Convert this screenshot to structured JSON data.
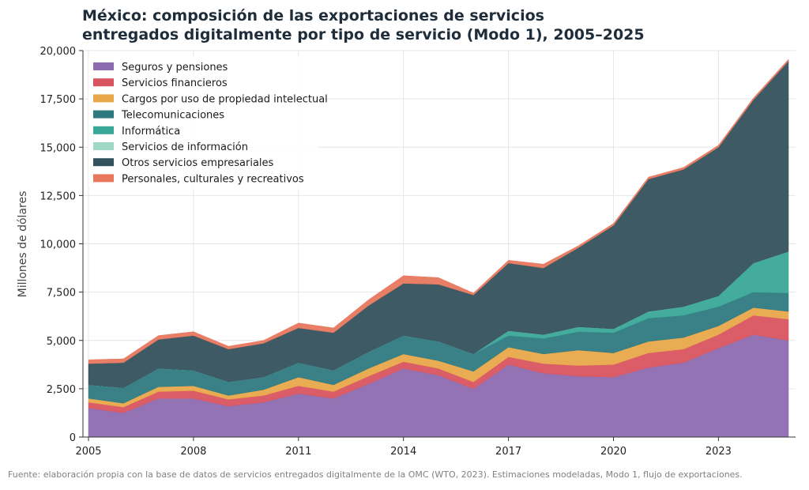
{
  "title_lines": [
    "México: composición de las exportaciones de servicios",
    "entregados digitalmente por tipo de servicio (Modo 1), 2005–2025"
  ],
  "footnote": "Fuente: elaboración propia con la base de datos de servicios entregados digitalmente de la OMC (WTO, 2023). Estimaciones modeladas, Modo 1, flujo de exportaciones.",
  "chart_data": {
    "type": "area",
    "stacked": true,
    "title": "México: composición de las exportaciones de servicios entregados digitalmente por tipo de servicio (Modo 1), 2005–2025",
    "xlabel": "",
    "ylabel": "Millones de dólares",
    "xlim": [
      2005,
      2025
    ],
    "ylim": [
      0,
      20000
    ],
    "x_ticks": [
      2005,
      2008,
      2011,
      2014,
      2017,
      2020,
      2023
    ],
    "y_ticks": [
      0,
      2500,
      5000,
      7500,
      10000,
      12500,
      15000,
      17500,
      20000
    ],
    "y_tick_labels": [
      "0",
      "2,500",
      "5,000",
      "7,500",
      "10,000",
      "12,500",
      "15,000",
      "17,500",
      "20,000"
    ],
    "grid": true,
    "legend_position": "top-left",
    "x": [
      2005,
      2006,
      2007,
      2008,
      2009,
      2010,
      2011,
      2012,
      2013,
      2014,
      2015,
      2016,
      2017,
      2018,
      2019,
      2020,
      2021,
      2022,
      2023,
      2024,
      2025
    ],
    "series": [
      {
        "name": "Seguros y pensiones",
        "color": "#8e6bb0",
        "values": [
          1500,
          1250,
          2000,
          2000,
          1600,
          1800,
          2250,
          2000,
          2750,
          3550,
          3200,
          2500,
          3750,
          3300,
          3150,
          3100,
          3600,
          3850,
          4600,
          5300,
          5000
        ]
      },
      {
        "name": "Servicios financieros",
        "color": "#d9545f",
        "values": [
          300,
          300,
          350,
          400,
          350,
          350,
          400,
          350,
          400,
          350,
          350,
          350,
          400,
          500,
          550,
          650,
          750,
          700,
          700,
          1000,
          1100
        ]
      },
      {
        "name": "Cargos por uso de propiedad intelectual",
        "color": "#e8a84a",
        "values": [
          200,
          200,
          250,
          250,
          200,
          300,
          450,
          350,
          400,
          400,
          400,
          550,
          500,
          500,
          800,
          600,
          600,
          600,
          450,
          400,
          400
        ]
      },
      {
        "name": "Telecomunicaciones",
        "color": "#2e7a80",
        "values": [
          700,
          800,
          950,
          800,
          700,
          650,
          750,
          750,
          850,
          950,
          1000,
          900,
          600,
          800,
          950,
          1050,
          1200,
          1150,
          1000,
          800,
          950
        ]
      },
      {
        "name": "Informática",
        "color": "#3aa898",
        "values": [
          0,
          0,
          0,
          0,
          0,
          0,
          0,
          0,
          0,
          0,
          0,
          0,
          250,
          200,
          250,
          200,
          350,
          450,
          550,
          1500,
          2150
        ]
      },
      {
        "name": "Servicios de información",
        "color": "#9fd8c4",
        "values": [
          0,
          0,
          0,
          0,
          0,
          0,
          0,
          0,
          0,
          0,
          0,
          0,
          0,
          0,
          0,
          0,
          0,
          0,
          0,
          0,
          0
        ]
      },
      {
        "name": "Otros servicios empresariales",
        "color": "#34525d",
        "values": [
          1100,
          1300,
          1500,
          1800,
          1700,
          1750,
          1800,
          1950,
          2400,
          2700,
          2950,
          3050,
          3500,
          3450,
          4100,
          5350,
          6850,
          7100,
          7700,
          8450,
          9850
        ]
      },
      {
        "name": "Personales, culturales y recreativos",
        "color": "#e8775e",
        "values": [
          200,
          200,
          200,
          200,
          150,
          150,
          250,
          250,
          300,
          400,
          350,
          100,
          150,
          200,
          100,
          100,
          100,
          100,
          100,
          100,
          100
        ]
      }
    ]
  }
}
